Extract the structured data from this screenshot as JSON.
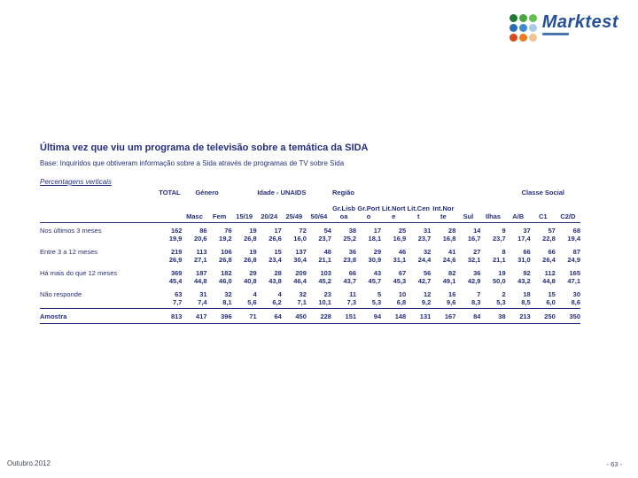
{
  "logo": {
    "brand": "Marktest",
    "dot_colors": [
      [
        "#1f7a34",
        "#46a83c",
        "#63bf50"
      ],
      [
        "#2a6cb3",
        "#3e89cf",
        "#a8c9e9"
      ],
      [
        "#d9481f",
        "#ef7c1c",
        "#f3c391"
      ]
    ]
  },
  "header": {
    "title": "Última vez que viu um programa de televisão sobre a temática da SIDA",
    "base_note": "Base: Inquiridos que obtiveram informação sobre a Sida através de programas de TV sobre Sida",
    "note": "Percentagens verticais"
  },
  "table": {
    "group_headers": [
      {
        "label": "TOTAL",
        "span": 1
      },
      {
        "label": "Género",
        "span": 2
      },
      {
        "label": "Idade - UNAIDS",
        "span": 4
      },
      {
        "label": "Região",
        "span": 7
      },
      {
        "label": "Classe Social",
        "span": 3
      }
    ],
    "column_headers": [
      "",
      "Masc",
      "Fem",
      "15/19",
      "20/24",
      "25/49",
      "50/64",
      "Gr.Lisb\noa",
      "Gr.Port\no",
      "Lit.Nort\ne",
      "Lit.Cen\nt",
      "Int.Nor\nte",
      "Sul",
      "Ilhas",
      "A/B",
      "C1",
      "C2/D"
    ],
    "rows": [
      {
        "label": "Nos últimos 3 meses",
        "counts": [
          162,
          86,
          76,
          19,
          17,
          72,
          54,
          38,
          17,
          25,
          31,
          28,
          14,
          9,
          37,
          57,
          68
        ],
        "percents": [
          "19,9",
          "20,6",
          "19,2",
          "26,8",
          "26,6",
          "16,0",
          "23,7",
          "25,2",
          "18,1",
          "16,9",
          "23,7",
          "16,8",
          "16,7",
          "23,7",
          "17,4",
          "22,8",
          "19,4"
        ]
      },
      {
        "label": "Entre 3 a 12 meses",
        "counts": [
          219,
          113,
          106,
          19,
          15,
          137,
          48,
          36,
          29,
          46,
          32,
          41,
          27,
          8,
          66,
          66,
          87
        ],
        "percents": [
          "26,9",
          "27,1",
          "26,8",
          "26,8",
          "23,4",
          "30,4",
          "21,1",
          "23,8",
          "30,9",
          "31,1",
          "24,4",
          "24,6",
          "32,1",
          "21,1",
          "31,0",
          "26,4",
          "24,9"
        ]
      },
      {
        "label": "Há mais do que 12 meses",
        "counts": [
          369,
          187,
          182,
          29,
          28,
          209,
          103,
          66,
          43,
          67,
          56,
          82,
          36,
          19,
          92,
          112,
          165
        ],
        "percents": [
          "45,4",
          "44,8",
          "46,0",
          "40,8",
          "43,8",
          "46,4",
          "45,2",
          "43,7",
          "45,7",
          "45,3",
          "42,7",
          "49,1",
          "42,9",
          "50,0",
          "43,2",
          "44,8",
          "47,1"
        ]
      },
      {
        "label": "Não responde",
        "counts": [
          63,
          31,
          32,
          4,
          4,
          32,
          23,
          11,
          5,
          10,
          12,
          16,
          7,
          2,
          18,
          15,
          30
        ],
        "percents": [
          "7,7",
          "7,4",
          "8,1",
          "5,6",
          "6,2",
          "7,1",
          "10,1",
          "7,3",
          "5,3",
          "6,8",
          "9,2",
          "9,6",
          "8,3",
          "5,3",
          "8,5",
          "6,0",
          "8,6"
        ]
      }
    ],
    "footer_row": {
      "label": "Amostra",
      "values": [
        813,
        417,
        396,
        71,
        64,
        450,
        228,
        151,
        94,
        148,
        131,
        167,
        84,
        38,
        213,
        250,
        350
      ]
    }
  },
  "footer": {
    "date": "Outubro.2012",
    "page": "- 63 -"
  },
  "colors": {
    "text_navy": "#232e7c",
    "footer_text": "#3e4a55",
    "logo_blue": "#24509b"
  }
}
